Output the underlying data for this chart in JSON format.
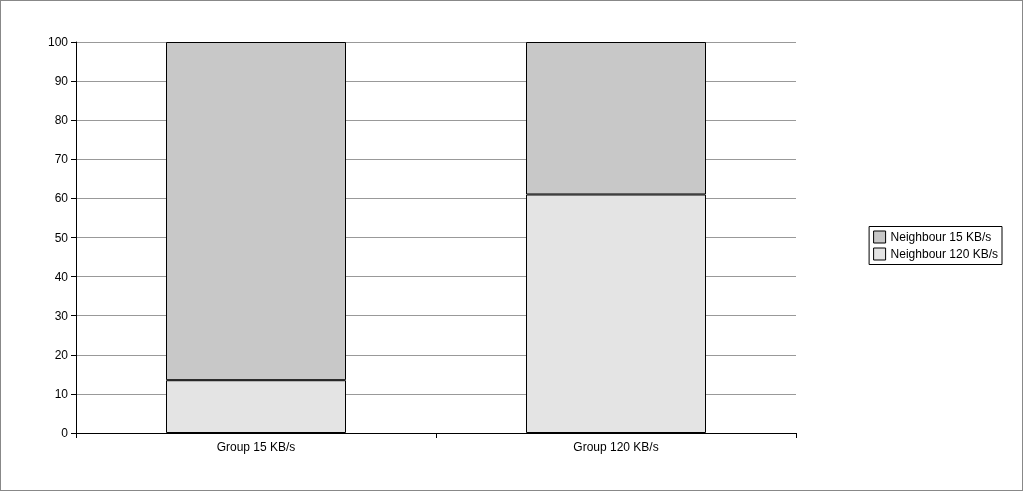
{
  "chart_data": {
    "type": "bar",
    "stacked": true,
    "categories": [
      "Group 15 KB/s",
      "Group 120 KB/s"
    ],
    "series": [
      {
        "name": "Neighbour 120 KB/s",
        "color": "#e4e4e4",
        "values": [
          13.5,
          61
        ]
      },
      {
        "name": "Neighbour 15 KB/s",
        "color": "#c8c8c8",
        "values": [
          86.5,
          39
        ]
      }
    ],
    "ylim": [
      0,
      100
    ],
    "yticks": [
      0,
      10,
      20,
      30,
      40,
      50,
      60,
      70,
      80,
      90,
      100
    ],
    "grid": "y",
    "legend": "right"
  }
}
